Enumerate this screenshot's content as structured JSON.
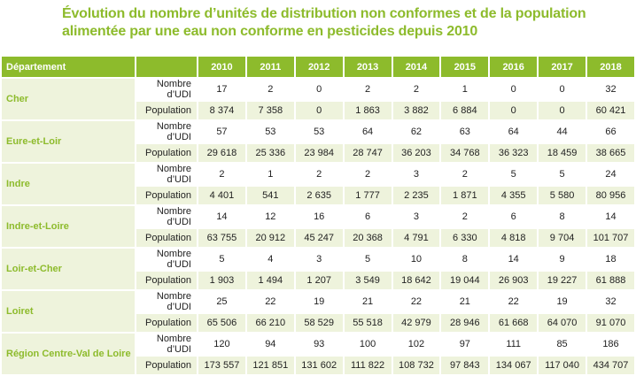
{
  "title": "Évolution du nombre d’unités de distribution non conformes et de la population alimentée par une eau non conforme en pesticides depuis 2010",
  "table": {
    "dept_header": "Département",
    "years": [
      "2010",
      "2011",
      "2012",
      "2013",
      "2014",
      "2015",
      "2016",
      "2017",
      "2018"
    ],
    "row_labels": {
      "udi": "Nombre d’UDI",
      "pop": "Population"
    },
    "departments": [
      {
        "name": "Cher",
        "udi": [
          "17",
          "2",
          "0",
          "2",
          "2",
          "1",
          "0",
          "0",
          "32"
        ],
        "pop": [
          "8 374",
          "7 358",
          "0",
          "1 863",
          "3 882",
          "6 884",
          "0",
          "0",
          "60 421"
        ]
      },
      {
        "name": "Eure-et-Loir",
        "udi": [
          "57",
          "53",
          "53",
          "64",
          "62",
          "63",
          "64",
          "44",
          "66"
        ],
        "pop": [
          "29 618",
          "25 336",
          "23 984",
          "28 747",
          "36 203",
          "34 768",
          "36 323",
          "18 459",
          "38 665"
        ]
      },
      {
        "name": "Indre",
        "udi": [
          "2",
          "1",
          "2",
          "2",
          "3",
          "2",
          "5",
          "5",
          "24"
        ],
        "pop": [
          "4 401",
          "541",
          "2 635",
          "1 777",
          "2 235",
          "1 871",
          "4 355",
          "5 580",
          "80 956"
        ]
      },
      {
        "name": "Indre-et-Loire",
        "udi": [
          "14",
          "12",
          "16",
          "6",
          "3",
          "2",
          "6",
          "8",
          "14"
        ],
        "pop": [
          "63 755",
          "20 912",
          "45 247",
          "20 368",
          "4 791",
          "6 330",
          "4 818",
          "9 704",
          "101 707"
        ]
      },
      {
        "name": "Loir-et-Cher",
        "udi": [
          "5",
          "4",
          "3",
          "5",
          "10",
          "8",
          "14",
          "9",
          "18"
        ],
        "pop": [
          "1 903",
          "1 494",
          "1 207",
          "3 549",
          "18 642",
          "19 044",
          "26 903",
          "19 227",
          "61 888"
        ]
      },
      {
        "name": "Loiret",
        "udi": [
          "25",
          "22",
          "19",
          "21",
          "22",
          "21",
          "22",
          "19",
          "32"
        ],
        "pop": [
          "65 506",
          "66 210",
          "58 529",
          "55 518",
          "42 979",
          "28 946",
          "61 668",
          "64 070",
          "91 070"
        ]
      },
      {
        "name": "Région Centre-Val de Loire",
        "udi": [
          "120",
          "94",
          "93",
          "100",
          "102",
          "97",
          "111",
          "85",
          "186"
        ],
        "pop": [
          "173 557",
          "121 851",
          "131 602",
          "111 822",
          "108 732",
          "97 843",
          "134 067",
          "117 040",
          "434 707"
        ]
      }
    ]
  }
}
